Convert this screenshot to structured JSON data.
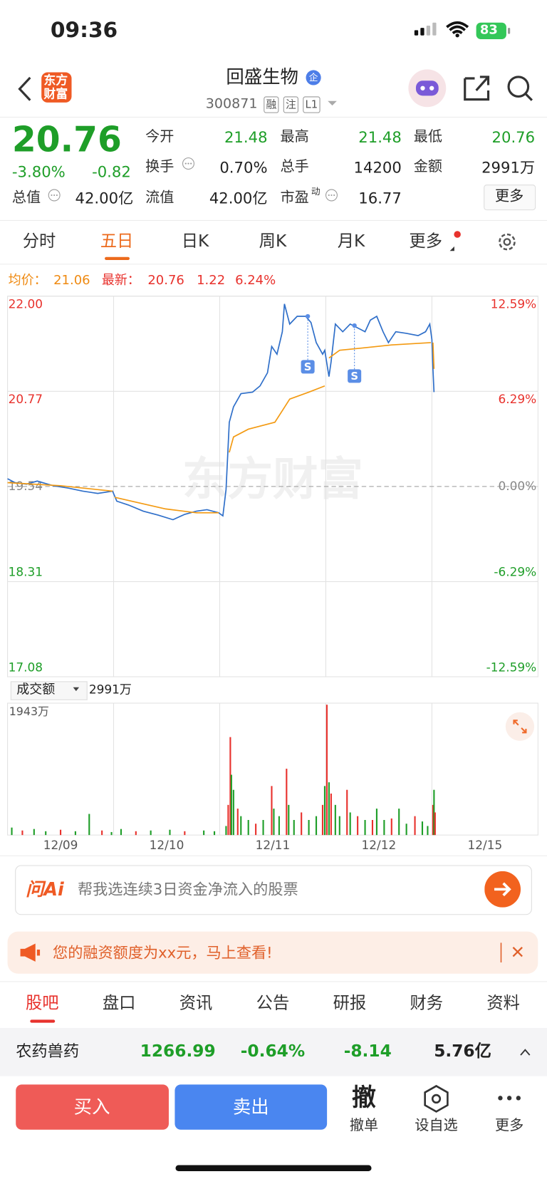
{
  "status": {
    "time": "09:36",
    "battery": "83"
  },
  "header": {
    "logo": [
      "东方",
      "财富"
    ],
    "title": "回盛生物",
    "badge": "企",
    "code": "300871",
    "tags": [
      "融",
      "注",
      "L1"
    ]
  },
  "quote": {
    "price": "20.76",
    "change_pct": "-3.80%",
    "change": "-0.82",
    "stats": [
      {
        "label": "今开",
        "value": "21.48"
      },
      {
        "label": "最高",
        "value": "21.48"
      },
      {
        "label": "最低",
        "value": "20.76"
      },
      {
        "label": "换手",
        "value": "0.70%"
      },
      {
        "label": "总手",
        "value": "14200"
      },
      {
        "label": "金额",
        "value": "2991万"
      },
      {
        "label": "总值",
        "value": "42.00亿"
      },
      {
        "label": "流值",
        "value": "42.00亿"
      },
      {
        "label": "市盈",
        "sup": "动",
        "value": "16.77"
      }
    ],
    "more": "更多"
  },
  "tabs": [
    "分时",
    "五日",
    "日K",
    "周K",
    "月K",
    "更多"
  ],
  "chart_info": {
    "avg_label": "均价：",
    "avg": "21.06",
    "latest_label": "最新：",
    "latest": "20.76",
    "change": "1.22",
    "change_pct": "6.24%"
  },
  "chart_data": [
    {
      "type": "line",
      "watermark": "东方财富",
      "xlim": [
        0,
        5
      ],
      "categories": [
        "12/09",
        "12/10",
        "12/11",
        "12/12",
        "12/15"
      ],
      "ylim": [
        17.08,
        22
      ],
      "yticks": [
        {
          "value": 22,
          "label": "22.00"
        },
        20.77,
        19.54,
        18.31,
        17.08
      ],
      "y2lim": [
        -12.59,
        12.59
      ],
      "y2ticks": [
        {
          "value": 12.59,
          "label": "12.59%"
        },
        {
          "value": 6.29,
          "label": "6.29%"
        },
        {
          "value": 0,
          "label": "0.00%"
        },
        {
          "value": -6.29,
          "label": "-6.29%"
        },
        {
          "value": -12.59,
          "label": "-12.59%"
        }
      ],
      "series": [
        {
          "color": "#2f6fc9",
          "x": [
            0,
            0.07,
            0.18,
            0.28,
            0.43,
            0.57,
            0.71,
            0.85,
            0.99,
            1.03,
            1.14,
            1.28,
            1.42,
            1.56,
            1.67,
            1.78,
            1.88,
            1.99,
            2.03,
            2.06,
            2.09,
            2.13,
            2.2,
            2.31,
            2.38,
            2.45,
            2.49,
            2.54,
            2.59,
            2.61,
            2.66,
            2.73,
            2.81,
            2.86,
            2.91,
            2.97,
            2.99,
            3.03,
            3.05,
            3.09,
            3.16,
            3.23,
            3.3,
            3.37,
            3.42,
            3.48,
            3.54,
            3.59,
            3.66,
            3.76,
            3.87,
            3.94,
            3.98,
            4,
            4.01,
            4.02
          ],
          "values": [
            19.64,
            19.59,
            19.57,
            19.61,
            19.55,
            19.52,
            19.48,
            19.45,
            19.48,
            19.35,
            19.3,
            19.22,
            19.17,
            19.11,
            19.18,
            19.22,
            19.24,
            19.2,
            19.16,
            19.5,
            20.37,
            20.57,
            20.74,
            20.76,
            20.84,
            21.01,
            21.35,
            21.25,
            21.54,
            21.9,
            21.64,
            21.74,
            21.74,
            21.66,
            21.4,
            21.25,
            21.3,
            20.96,
            21.15,
            21.64,
            21.54,
            21.64,
            21.59,
            21.54,
            21.69,
            21.74,
            21.54,
            21.4,
            21.54,
            21.52,
            21.49,
            21.54,
            21.64,
            21.44,
            21.06,
            20.76
          ]
        },
        {
          "color": "#f39a12",
          "x": [
            0,
            0.5,
            0.99,
            null,
            1.01,
            1.49,
            1.78,
            1.99,
            null,
            2.09,
            2.13,
            2.27,
            2.52,
            2.59,
            2.66,
            2.84,
            2.99,
            null,
            3.03,
            3.13,
            3.34,
            3.62,
            3.99,
            null,
            4.01,
            4.02
          ],
          "values": [
            19.59,
            19.55,
            19.48,
            null,
            19.4,
            19.25,
            19.2,
            19.2,
            null,
            19.98,
            20.18,
            20.28,
            20.37,
            20.52,
            20.67,
            20.76,
            20.84,
            null,
            21.2,
            21.3,
            21.33,
            21.37,
            21.4,
            null,
            21.4,
            21.06
          ]
        }
      ],
      "annotations": [
        {
          "text": "S",
          "x": 2.83,
          "y": 21.74
        },
        {
          "text": "S",
          "x": 3.27,
          "y": 21.62
        }
      ]
    },
    {
      "type": "bar",
      "xlim": [
        0,
        5
      ],
      "ylim": [
        0,
        1943
      ],
      "yticks": [
        {
          "value": 1943,
          "label": "1943万"
        }
      ],
      "x": [
        0.04,
        0.14,
        0.25,
        0.36,
        0.5,
        0.64,
        0.77,
        0.89,
        0.98,
        1.07,
        1.21,
        1.35,
        1.53,
        1.67,
        1.85,
        1.95,
        2.06,
        2.08,
        2.1,
        2.11,
        2.13,
        2.17,
        2.2,
        2.27,
        2.34,
        2.41,
        2.49,
        2.51,
        2.56,
        2.63,
        2.65,
        2.7,
        2.77,
        2.84,
        2.91,
        2.97,
        2.99,
        3.01,
        3.03,
        3.05,
        3.09,
        3.13,
        3.2,
        3.23,
        3.3,
        3.37,
        3.44,
        3.48,
        3.55,
        3.62,
        3.69,
        3.76,
        3.84,
        3.91,
        3.96,
        4.01,
        4.02,
        4.03
      ],
      "values": [
        110,
        67,
        89,
        56,
        78,
        56,
        311,
        67,
        44,
        89,
        56,
        67,
        78,
        56,
        67,
        56,
        133,
        444,
        1443,
        888,
        666,
        389,
        278,
        222,
        167,
        222,
        722,
        389,
        278,
        977,
        444,
        222,
        333,
        222,
        278,
        444,
        722,
        1920,
        777,
        611,
        444,
        278,
        666,
        333,
        278,
        222,
        222,
        389,
        222,
        244,
        389,
        167,
        278,
        200,
        133,
        444,
        666,
        333
      ],
      "colors": [
        "#1e9e28",
        "#e8322d",
        "#1e9e28",
        "#1e9e28",
        "#e8322d",
        "#1e9e28",
        "#1e9e28",
        "#e8322d",
        "#1e9e28",
        "#1e9e28",
        "#e8322d",
        "#1e9e28",
        "#1e9e28",
        "#e8322d",
        "#1e9e28",
        "#1e9e28",
        "#1e9e28",
        "#e8322d",
        "#e8322d",
        "#1e9e28",
        "#1e9e28",
        "#e8322d",
        "#1e9e28",
        "#1e9e28",
        "#e8322d",
        "#1e9e28",
        "#e8322d",
        "#1e9e28",
        "#1e9e28",
        "#e8322d",
        "#1e9e28",
        "#1e9e28",
        "#e8322d",
        "#1e9e28",
        "#1e9e28",
        "#e8322d",
        "#1e9e28",
        "#e8322d",
        "#1e9e28",
        "#e8322d",
        "#1e9e28",
        "#1e9e28",
        "#e8322d",
        "#1e9e28",
        "#e8322d",
        "#1e9e28",
        "#e8322d",
        "#1e9e28",
        "#1e9e28",
        "#e8322d",
        "#1e9e28",
        "#1e9e28",
        "#e8322d",
        "#1e9e28",
        "#1e9e28",
        "#e8322d",
        "#1e9e28",
        "#e8322d"
      ]
    }
  ],
  "volume_header": {
    "metric": "成交额",
    "value": "2991万"
  },
  "ai": {
    "logo": "问Ai",
    "prompt": "帮我选连续3日资金净流入的股票"
  },
  "banner": {
    "text": "您的融资额度为xx元，马上查看!"
  },
  "bottom_tabs": [
    "股吧",
    "盘口",
    "资讯",
    "公告",
    "研报",
    "财务",
    "资料"
  ],
  "sector": {
    "name": "农药兽药",
    "price": "1266.99",
    "change_pct": "-0.64%",
    "change": "-8.14",
    "turnover": "5.76亿"
  },
  "actions": {
    "buy": "买入",
    "sell": "卖出",
    "cancel_icon": "撤",
    "cancel": "撤单",
    "watch": "设自选",
    "more": "更多"
  }
}
